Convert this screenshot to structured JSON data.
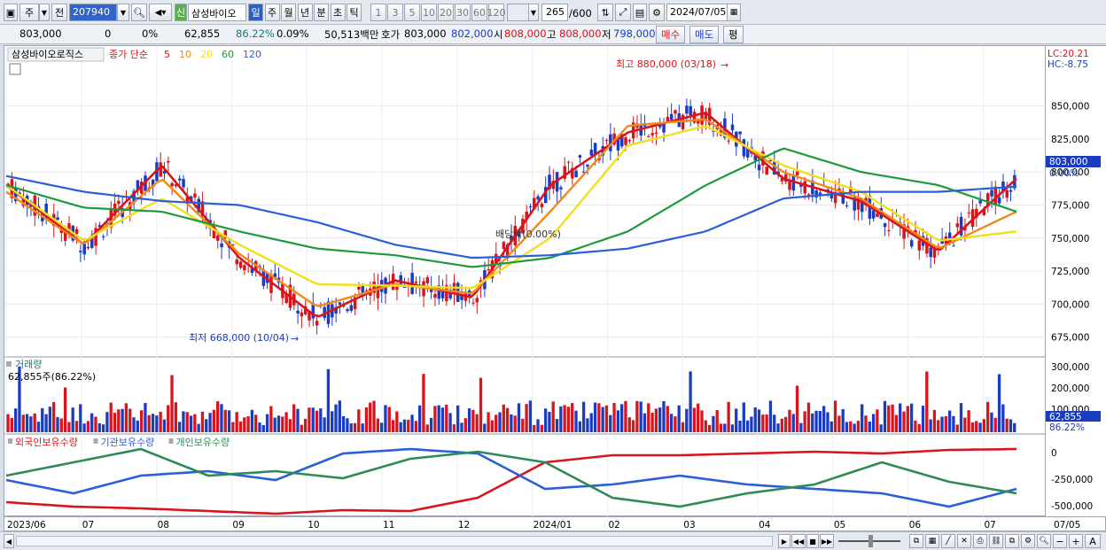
{
  "toolbar": {
    "market": "주",
    "prev_label": "전",
    "code": "207940",
    "badge": "신",
    "name": "삼성바이오",
    "periods": [
      "일",
      "주",
      "월",
      "년",
      "분",
      "초",
      "틱"
    ],
    "active_period": "일",
    "intervals": [
      "1",
      "3",
      "5",
      "10",
      "20",
      "30",
      "60",
      "120"
    ],
    "count": "265",
    "count_total": "/600",
    "date": "2024/07/05"
  },
  "quote": {
    "price": "803,000",
    "change": "0",
    "change_rate": "0%",
    "volume": "62,855",
    "vol_ratio": "86.22%",
    "turnover_ratio": "0.09%",
    "amount": "50,513백만",
    "ask_label": "호가",
    "ask": "803,000",
    "bid": "802,000",
    "open_label": "시",
    "open": "808,000",
    "high_label": "고",
    "high": "808,000",
    "low_label": "저",
    "low": "798,000",
    "buy_button": "매수",
    "sell_button": "매도",
    "eval_button": "평"
  },
  "price_panel": {
    "stock_name": "삼성바이오로직스",
    "legend_prefix": "종가 단순",
    "ma_labels": [
      "5",
      "10",
      "20",
      "60",
      "120"
    ],
    "ma_colors": [
      "#d8141c",
      "#f08a1c",
      "#f0e01c",
      "#1e9a3c",
      "#2a5fd8"
    ],
    "lc": "LC:20.21",
    "hc": "HC:-8.75",
    "high_note": "최고 880,000 (03/18)",
    "low_note": "최저 668,000 (10/04)",
    "dividend_note": "배당락(0.00%)",
    "current_tag": "803,000",
    "current_pct": "0.00%"
  },
  "volume_panel": {
    "title": "거래량",
    "info": "62,855주(86.22%)",
    "current_tag": "62,855",
    "current_pct": "86.22%"
  },
  "holder_panel": {
    "labels": [
      "외국인보유수량",
      "기관보유수량",
      "개인보유수량"
    ],
    "colors": [
      "#d8141c",
      "#2a5fd8",
      "#2e8b57"
    ]
  },
  "price_axis_ticks": [
    "850,000",
    "825,000",
    "800,000",
    "775,000",
    "750,000",
    "725,000",
    "700,000",
    "675,000"
  ],
  "volume_axis_ticks": [
    "300,000",
    "200,000",
    "100,000"
  ],
  "holder_axis_ticks": [
    "0",
    "-250,000",
    "-500,000"
  ],
  "date_axis": [
    "2023/06",
    "07",
    "08",
    "09",
    "10",
    "11",
    "12",
    "2024/01",
    "02",
    "03",
    "04",
    "05",
    "06",
    "07"
  ],
  "date_axis_end": "07/05",
  "chart_data": {
    "type": "line",
    "title": "",
    "x": [
      "2023/06",
      "2023/07",
      "2023/08",
      "2023/09",
      "2023/10",
      "2023/11",
      "2023/12",
      "2024/01",
      "2024/02",
      "2024/03",
      "2024/04",
      "2024/05",
      "2024/06",
      "2024/07"
    ],
    "series": [
      {
        "name": "5",
        "values": [
          790000,
          745000,
          805000,
          735000,
          690000,
          718000,
          705000,
          790000,
          830000,
          845000,
          795000,
          778000,
          740000,
          795000
        ]
      },
      {
        "name": "10",
        "values": [
          785000,
          745000,
          795000,
          738000,
          698000,
          715000,
          708000,
          770000,
          835000,
          840000,
          800000,
          780000,
          742000,
          770000
        ]
      },
      {
        "name": "20",
        "values": [
          790000,
          748000,
          780000,
          745000,
          715000,
          714000,
          712000,
          750000,
          820000,
          835000,
          805000,
          785000,
          748000,
          755000
        ]
      },
      {
        "name": "60",
        "values": [
          790000,
          773000,
          770000,
          755000,
          742000,
          737000,
          728000,
          735000,
          755000,
          790000,
          818000,
          800000,
          790000,
          770000
        ]
      },
      {
        "name": "120",
        "values": [
          797000,
          785000,
          778000,
          775000,
          762000,
          745000,
          735000,
          737000,
          742000,
          755000,
          780000,
          785000,
          785000,
          789000
        ]
      }
    ],
    "high": {
      "value": 880000,
      "date": "03/18"
    },
    "low": {
      "value": 668000,
      "date": "10/04"
    },
    "ylim": [
      660000,
      890000
    ]
  }
}
